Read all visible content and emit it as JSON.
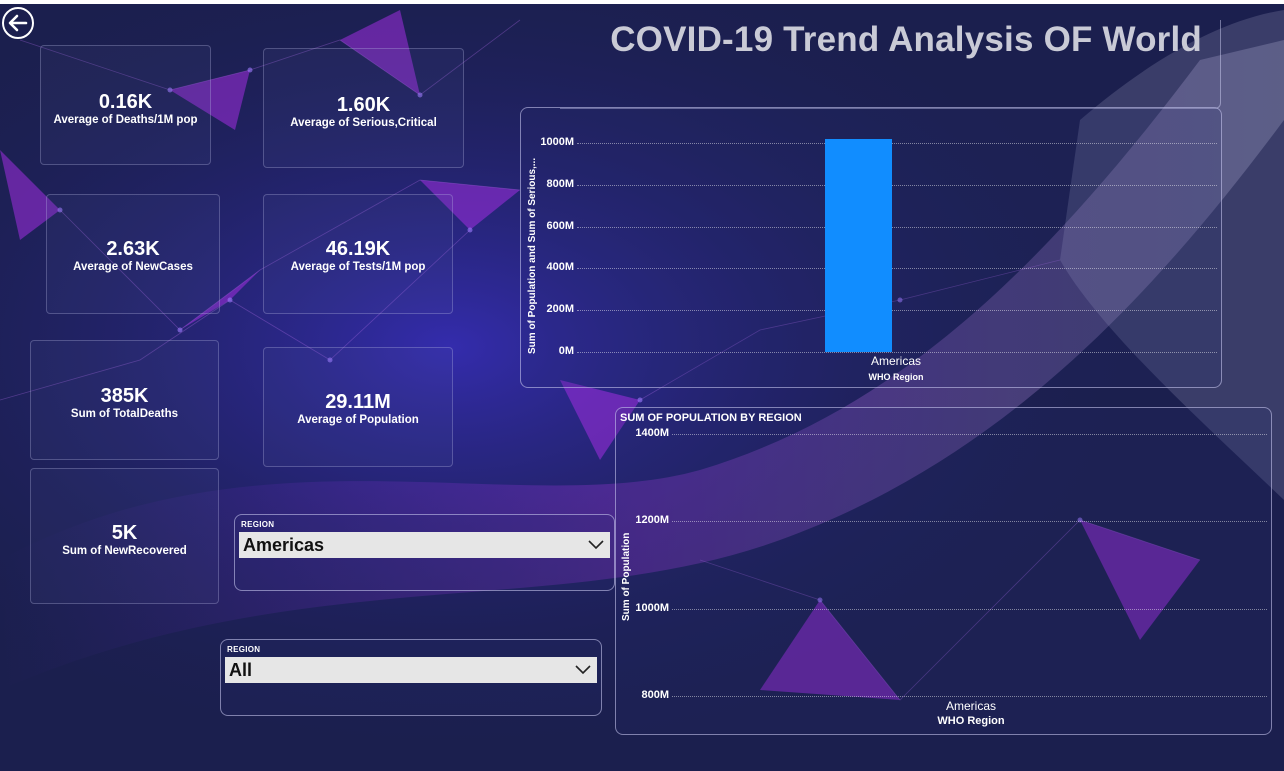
{
  "page": {
    "title": "COVID-19 Trend Analysis OF World",
    "back_icon": "arrow-left-icon"
  },
  "colors": {
    "background": "#1b1f4e",
    "accent_purple": "#a12ee0",
    "bar_blue": "#118dff",
    "title_text": "#c9cad6"
  },
  "cards": [
    {
      "value": "0.16K",
      "label": "Average of Deaths/1M pop"
    },
    {
      "value": "1.60K",
      "label": "Average of Serious,Critical"
    },
    {
      "value": "2.63K",
      "label": "Average of NewCases"
    },
    {
      "value": "46.19K",
      "label": "Average of Tests/1M pop"
    },
    {
      "value": "385K",
      "label": "Sum of TotalDeaths"
    },
    {
      "value": "29.11M",
      "label": "Average of Population"
    },
    {
      "value": "5K",
      "label": "Sum of NewRecovered"
    }
  ],
  "slicers": [
    {
      "title": "REGION",
      "selected": "Americas"
    },
    {
      "title": "REGION",
      "selected": "All"
    }
  ],
  "chart_data": [
    {
      "type": "bar",
      "title": "",
      "categories": [
        "Americas"
      ],
      "series": [
        {
          "name": "Sum of Population",
          "values": [
            1020
          ]
        },
        {
          "name": "Sum of Serious,Critical",
          "values": [
            0
          ]
        }
      ],
      "unit": "M",
      "xlabel": "WHO Region",
      "ylabel": "Sum of Population and Sum of Serious,...",
      "yticks": [
        "0M",
        "200M",
        "400M",
        "600M",
        "800M",
        "1000M"
      ],
      "ylim": [
        0,
        1000
      ],
      "grid": true
    },
    {
      "type": "bar",
      "title": "SUM OF POPULATION BY REGION",
      "categories": [
        "Americas"
      ],
      "values": [
        1020
      ],
      "unit": "M",
      "xlabel": "WHO Region",
      "ylabel": "Sum of Population",
      "yticks": [
        "800M",
        "1000M",
        "1200M",
        "1400M"
      ],
      "ylim": [
        800,
        1400
      ],
      "grid": true
    }
  ]
}
